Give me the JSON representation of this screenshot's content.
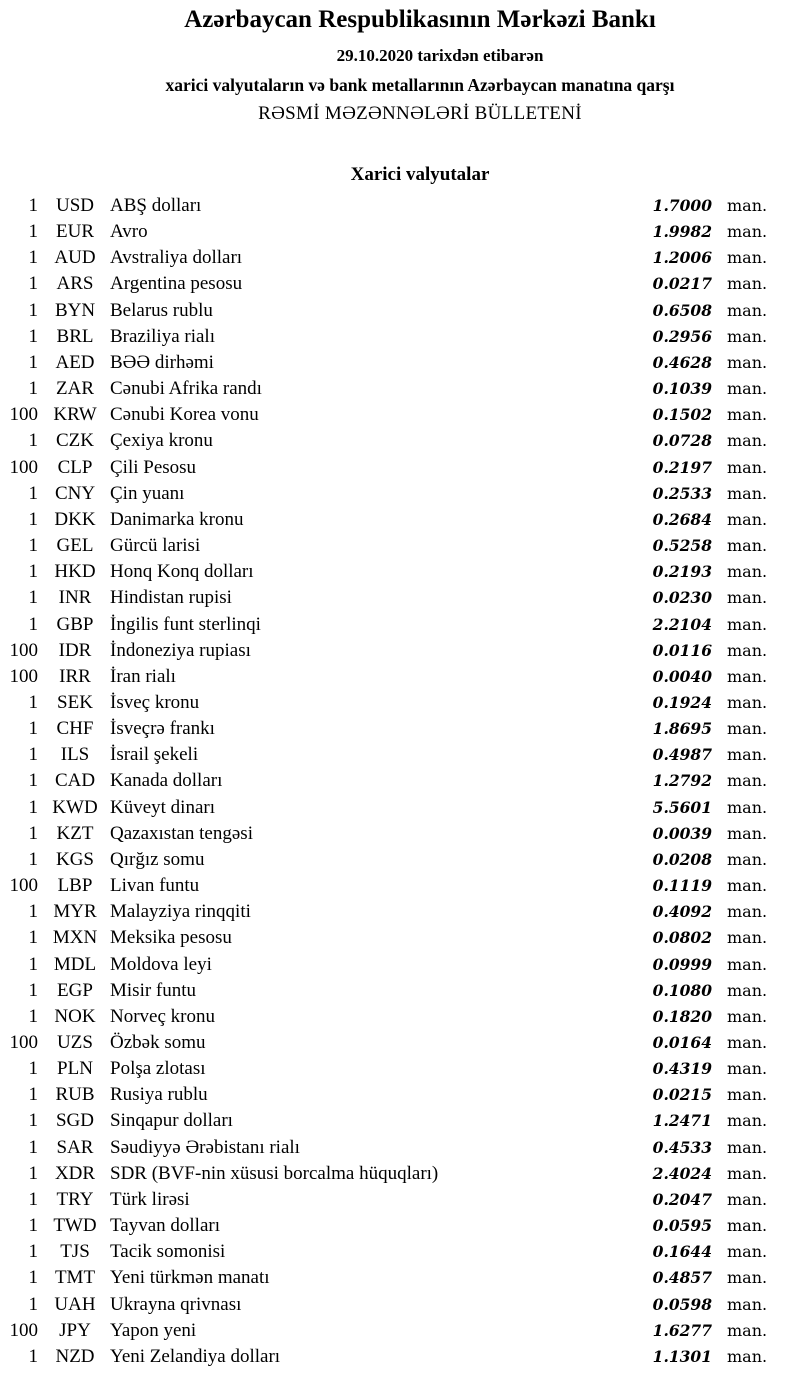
{
  "header": {
    "title": "Azərbaycan Respublikasının Mərkəzi Bankı",
    "date_line": "29.10.2020  tarixdən etibarən",
    "subtitle": "xarici valyutaların və bank metallarının Azərbaycan manatına qarşı",
    "bulletin": "RƏSMİ MƏZƏNNƏLƏRİ BÜLLETENİ"
  },
  "section_title": "Xarici valyutalar",
  "unit": "man.",
  "rates": [
    {
      "nominal": "1",
      "code": "USD",
      "name": "ABŞ dolları",
      "rate": "1.7000"
    },
    {
      "nominal": "1",
      "code": "EUR",
      "name": "Avro",
      "rate": "1.9982"
    },
    {
      "nominal": "1",
      "code": "AUD",
      "name": "Avstraliya dolları",
      "rate": "1.2006"
    },
    {
      "nominal": "1",
      "code": "ARS",
      "name": "Argentina pesosu",
      "rate": "0.0217"
    },
    {
      "nominal": "1",
      "code": "BYN",
      "name": "Belarus rublu",
      "rate": "0.6508"
    },
    {
      "nominal": "1",
      "code": "BRL",
      "name": "Braziliya rialı",
      "rate": "0.2956"
    },
    {
      "nominal": "1",
      "code": "AED",
      "name": "BƏƏ dirhəmi",
      "rate": "0.4628"
    },
    {
      "nominal": "1",
      "code": "ZAR",
      "name": "Cənubi Afrika randı",
      "rate": "0.1039"
    },
    {
      "nominal": "100",
      "code": "KRW",
      "name": "Cənubi Korea vonu",
      "rate": "0.1502"
    },
    {
      "nominal": "1",
      "code": "CZK",
      "name": "Çexiya kronu",
      "rate": "0.0728"
    },
    {
      "nominal": "100",
      "code": "CLP",
      "name": "Çili Pesosu",
      "rate": "0.2197"
    },
    {
      "nominal": "1",
      "code": "CNY",
      "name": "Çin yuanı",
      "rate": "0.2533"
    },
    {
      "nominal": "1",
      "code": "DKK",
      "name": "Danimarka kronu",
      "rate": "0.2684"
    },
    {
      "nominal": "1",
      "code": "GEL",
      "name": "Gürcü larisi",
      "rate": "0.5258"
    },
    {
      "nominal": "1",
      "code": "HKD",
      "name": "Honq Konq dolları",
      "rate": "0.2193"
    },
    {
      "nominal": "1",
      "code": "INR",
      "name": "Hindistan rupisi",
      "rate": "0.0230"
    },
    {
      "nominal": "1",
      "code": "GBP",
      "name": "İngilis funt sterlinqi",
      "rate": "2.2104"
    },
    {
      "nominal": "100",
      "code": "IDR",
      "name": "İndoneziya rupiası",
      "rate": "0.0116"
    },
    {
      "nominal": "100",
      "code": "IRR",
      "name": "İran rialı",
      "rate": "0.0040"
    },
    {
      "nominal": "1",
      "code": "SEK",
      "name": "İsveç kronu",
      "rate": "0.1924"
    },
    {
      "nominal": "1",
      "code": "CHF",
      "name": "İsveçrə frankı",
      "rate": "1.8695"
    },
    {
      "nominal": "1",
      "code": "ILS",
      "name": "İsrail şekeli",
      "rate": "0.4987"
    },
    {
      "nominal": "1",
      "code": "CAD",
      "name": "Kanada dolları",
      "rate": "1.2792"
    },
    {
      "nominal": "1",
      "code": "KWD",
      "name": "Küveyt dinarı",
      "rate": "5.5601"
    },
    {
      "nominal": "1",
      "code": "KZT",
      "name": "Qazaxıstan tengəsi",
      "rate": "0.0039"
    },
    {
      "nominal": "1",
      "code": "KGS",
      "name": "Qırğız somu",
      "rate": "0.0208"
    },
    {
      "nominal": "100",
      "code": "LBP",
      "name": "Livan funtu",
      "rate": "0.1119"
    },
    {
      "nominal": "1",
      "code": "MYR",
      "name": "Malayziya rinqqiti",
      "rate": "0.4092"
    },
    {
      "nominal": "1",
      "code": "MXN",
      "name": "Meksika pesosu",
      "rate": "0.0802"
    },
    {
      "nominal": "1",
      "code": "MDL",
      "name": "Moldova leyi",
      "rate": "0.0999"
    },
    {
      "nominal": "1",
      "code": "EGP",
      "name": "Misir funtu",
      "rate": "0.1080"
    },
    {
      "nominal": "1",
      "code": "NOK",
      "name": "Norveç kronu",
      "rate": "0.1820"
    },
    {
      "nominal": "100",
      "code": "UZS",
      "name": "Özbək somu",
      "rate": "0.0164"
    },
    {
      "nominal": "1",
      "code": "PLN",
      "name": "Polşa zlotası",
      "rate": "0.4319"
    },
    {
      "nominal": "1",
      "code": "RUB",
      "name": "Rusiya rublu",
      "rate": "0.0215"
    },
    {
      "nominal": "1",
      "code": "SGD",
      "name": "Sinqapur dolları",
      "rate": "1.2471"
    },
    {
      "nominal": "1",
      "code": "SAR",
      "name": "Səudiyyə Ərəbistanı rialı",
      "rate": "0.4533"
    },
    {
      "nominal": "1",
      "code": "XDR",
      "name": "SDR (BVF-nin xüsusi borcalma hüquqları)",
      "rate": "2.4024"
    },
    {
      "nominal": "1",
      "code": "TRY",
      "name": "Türk lirəsi",
      "rate": "0.2047"
    },
    {
      "nominal": "1",
      "code": "TWD",
      "name": "Tayvan dolları",
      "rate": "0.0595"
    },
    {
      "nominal": "1",
      "code": "TJS",
      "name": "Tacik somonisi",
      "rate": "0.1644"
    },
    {
      "nominal": "1",
      "code": "TMT",
      "name": "Yeni türkmən manatı",
      "rate": "0.4857"
    },
    {
      "nominal": "1",
      "code": "UAH",
      "name": "Ukrayna qrivnası",
      "rate": "0.0598"
    },
    {
      "nominal": "100",
      "code": "JPY",
      "name": "Yapon yeni",
      "rate": "1.6277"
    },
    {
      "nominal": "1",
      "code": "NZD",
      "name": "Yeni Zelandiya dolları",
      "rate": "1.1301"
    }
  ]
}
